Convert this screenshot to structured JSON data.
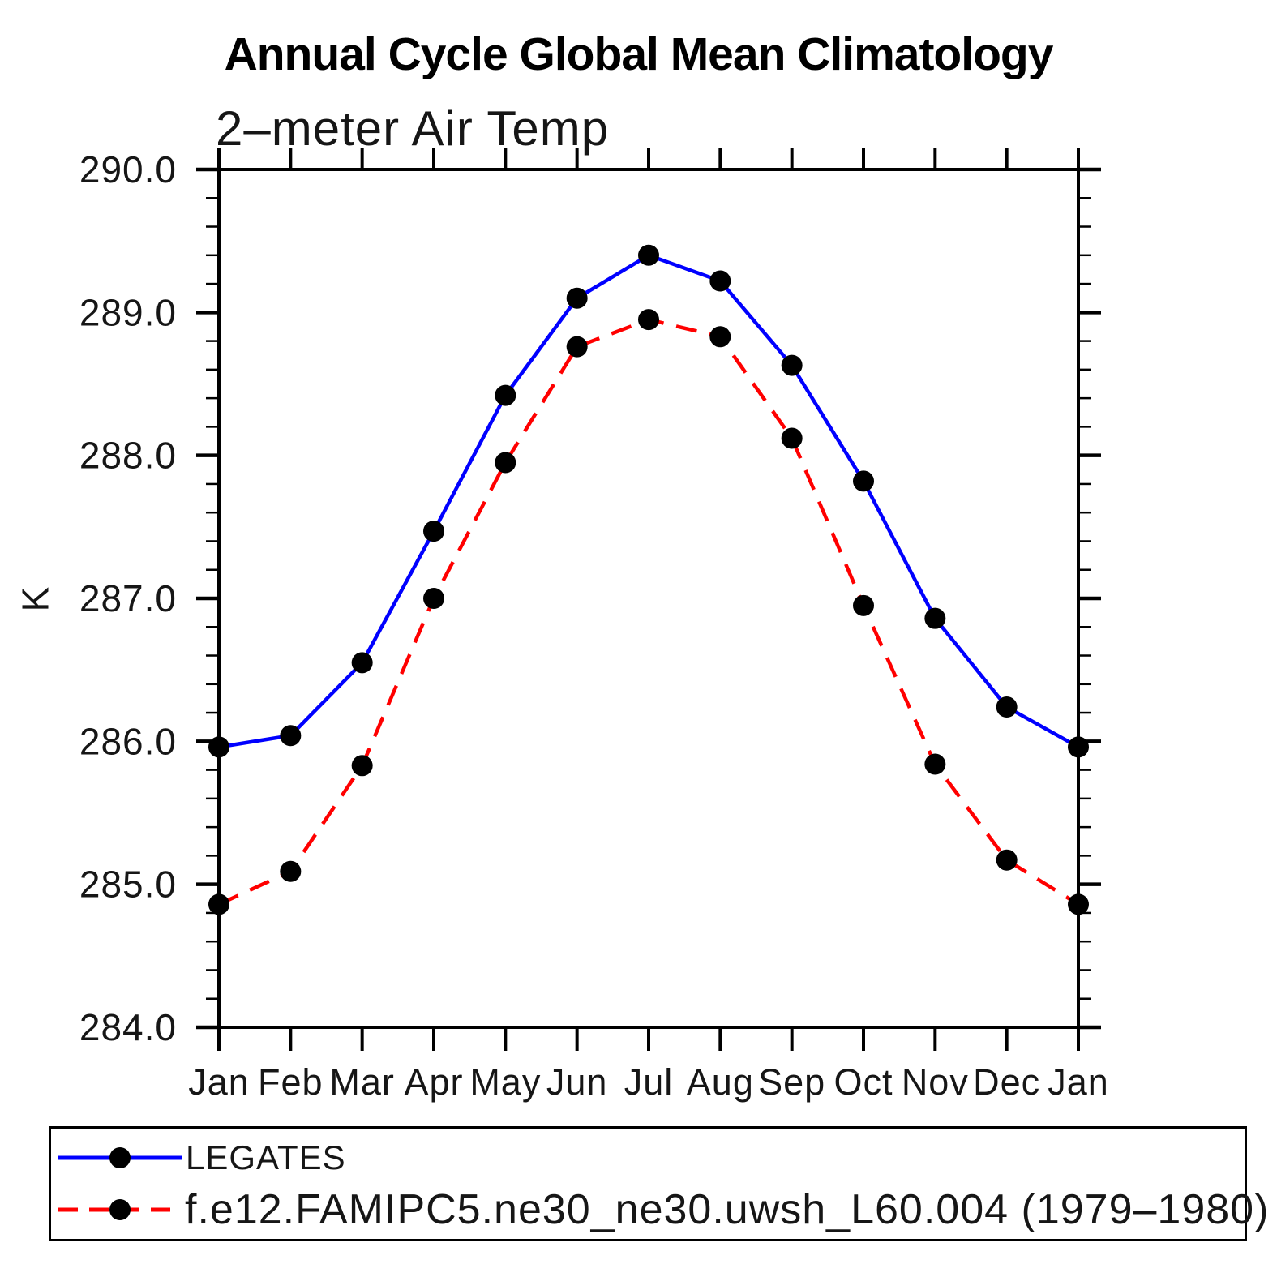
{
  "chart": {
    "title": "Annual Cycle Global Mean Climatology",
    "subtitle": "2–meter Air Temp",
    "ylabel": "K"
  },
  "chart_data": {
    "type": "line",
    "title": "Annual Cycle Global Mean Climatology",
    "subtitle": "2–meter Air Temp",
    "xlabel": "",
    "ylabel": "K",
    "categories": [
      "Jan",
      "Feb",
      "Mar",
      "Apr",
      "May",
      "Jun",
      "Jul",
      "Aug",
      "Sep",
      "Oct",
      "Nov",
      "Dec",
      "Jan"
    ],
    "ylim": [
      284.0,
      290.0
    ],
    "y_major_step": 1.0,
    "y_minor_step": 0.2,
    "y_tick_labels": [
      "290.0",
      "289.0",
      "288.0",
      "287.0",
      "286.0",
      "285.0",
      "284.0"
    ],
    "grid": false,
    "legend_position": "bottom",
    "marker": "filled-circle",
    "marker_color": "#000000",
    "axis_color": "#000000",
    "series": [
      {
        "name": "LEGATES",
        "color": "#0000ff",
        "style": "solid",
        "values": [
          285.96,
          286.04,
          286.55,
          287.47,
          288.42,
          289.1,
          289.4,
          289.22,
          288.63,
          287.82,
          286.86,
          286.24,
          285.96
        ]
      },
      {
        "name": "f.e12.FAMIPC5.ne30_ne30.uwsh_L60.004 (1979–1980)",
        "color": "#ff0000",
        "style": "dashed",
        "values": [
          284.86,
          285.09,
          285.83,
          287.0,
          287.95,
          288.76,
          288.95,
          288.83,
          288.12,
          286.95,
          285.84,
          285.17,
          284.86
        ]
      }
    ]
  }
}
